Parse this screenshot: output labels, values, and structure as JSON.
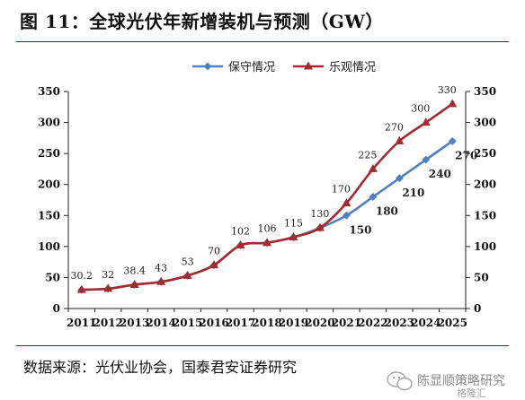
{
  "title": "图 11：全球光伏年新增装机与预测（GW）",
  "source": "数据来源：光伏业协会，国泰君安证券研究",
  "watermark": {
    "text": "陈显顺策略研究",
    "sub": "格隆汇"
  },
  "colors": {
    "conservative": "#4f81bd",
    "optimistic": "#a32a2e",
    "axis": "#222222"
  },
  "chart_data": {
    "type": "line",
    "categories": [
      "2011",
      "2012",
      "2013",
      "2014",
      "2015",
      "2016",
      "2017",
      "2018",
      "2019",
      "2020",
      "2021",
      "2022",
      "2023",
      "2024",
      "2025"
    ],
    "ylim": [
      0,
      350
    ],
    "yticks": [
      0,
      50,
      100,
      150,
      200,
      250,
      300,
      350
    ],
    "dual_y_axis": true,
    "grid": false,
    "legend_position": "top-center",
    "series": [
      {
        "name": "保守情况",
        "marker": "diamond",
        "values": [
          30.2,
          32,
          38.4,
          43,
          53,
          70,
          102,
          106,
          115,
          130,
          150,
          180,
          210,
          240,
          270
        ],
        "labels": [
          "",
          "",
          "",
          "",
          "",
          "",
          "",
          "",
          "",
          "",
          "150",
          "180",
          "210",
          "240",
          "270"
        ]
      },
      {
        "name": "乐观情况",
        "marker": "triangle",
        "values": [
          30.2,
          32,
          38.4,
          43,
          53,
          70,
          102,
          106,
          115,
          130,
          170,
          225,
          270,
          300,
          330
        ],
        "labels": [
          "30.2",
          "32",
          "38.4",
          "43",
          "53",
          "70",
          "102",
          "106",
          "115",
          "130",
          "170",
          "225",
          "270",
          "300",
          "330"
        ]
      }
    ]
  }
}
